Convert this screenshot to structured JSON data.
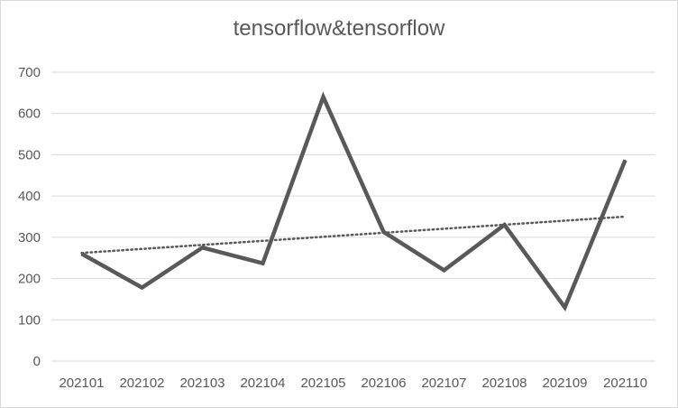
{
  "chart_data": {
    "type": "line",
    "title": "tensorflow&tensorflow",
    "categories": [
      "202101",
      "202102",
      "202103",
      "202104",
      "202105",
      "202106",
      "202107",
      "202108",
      "202109",
      "202110"
    ],
    "series": [
      {
        "values": [
          260,
          178,
          275,
          237,
          640,
          313,
          220,
          330,
          130,
          487
        ]
      }
    ],
    "trendline": {
      "type": "linear",
      "start": 262,
      "end": 350
    },
    "ylim": [
      0,
      700
    ],
    "yticks": [
      0,
      100,
      200,
      300,
      400,
      500,
      600,
      700
    ],
    "grid": true,
    "legend": "none",
    "colors": {
      "series": "#595959",
      "trendline": "#595959",
      "grid": "#d9d9d9",
      "text": "#595959"
    }
  }
}
